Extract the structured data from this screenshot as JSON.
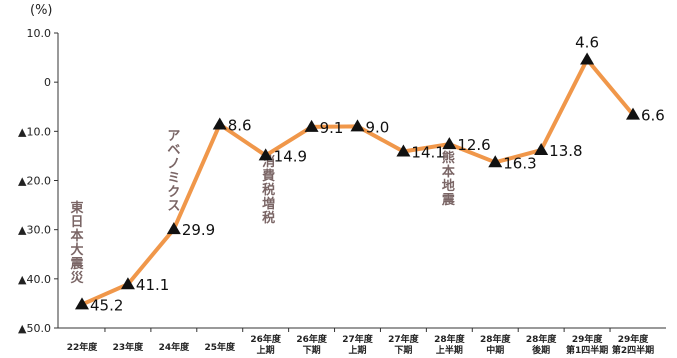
{
  "chart_data": {
    "type": "line",
    "unit": "(%)",
    "triangle_marker": "▲",
    "y_ticks": [
      10,
      0,
      -10,
      -20,
      -30,
      -40,
      -50
    ],
    "ylim": [
      -50,
      10
    ],
    "categories": [
      "22年度",
      "23年度",
      "24年度",
      "25年度",
      "26年度\n上期",
      "26年度\n下期",
      "27年度\n上期",
      "27年度\n下期",
      "28年度\n上半期",
      "28年度\n中期",
      "28年度\n後期",
      "29年度\n第1四半期",
      "29年度\n第2四半期"
    ],
    "values": [
      -45.2,
      -41.1,
      -29.9,
      -8.6,
      -14.9,
      -9.1,
      -9.0,
      -14.1,
      -12.6,
      -16.3,
      -13.8,
      4.6,
      -6.6
    ],
    "data_labels": [
      "45.2",
      "41.1",
      "29.9",
      "8.6",
      "14.9",
      "9.1",
      "9.0",
      "14.1",
      "12.6",
      "16.3",
      "13.8",
      "4.6",
      "6.6"
    ],
    "annotations": [
      {
        "text": "東日本大震災",
        "category_index": 0,
        "y": -25
      },
      {
        "text": "アベノミクス",
        "category_index": 2,
        "y": -12
      },
      {
        "text": "消費税増税",
        "category_index": 4,
        "y": -17
      },
      {
        "text": "熊本地震",
        "category_index": 8,
        "y": -16
      }
    ],
    "colors": {
      "line": "#f0974a",
      "marker": "#111111",
      "axis": "#333333",
      "annotation": "#7a6565"
    },
    "grid": false
  }
}
